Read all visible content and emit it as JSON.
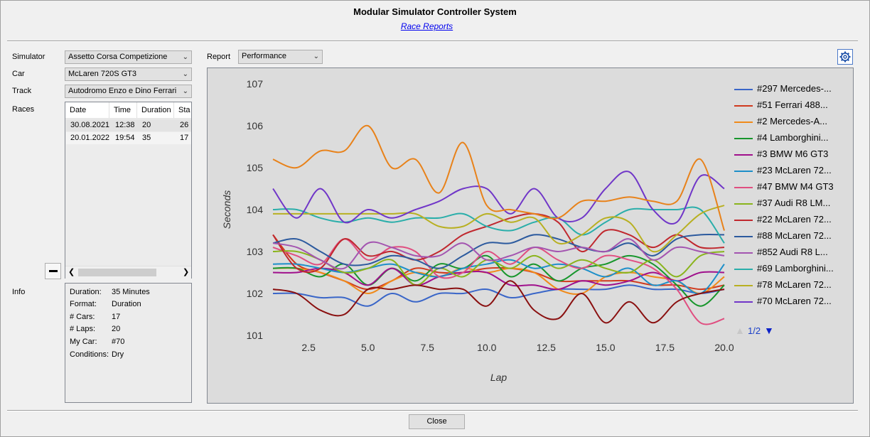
{
  "window": {
    "title": "Modular Simulator Controller System",
    "subtitle_link": "Race Reports"
  },
  "left": {
    "simulator_label": "Simulator",
    "simulator_value": "Assetto Corsa Competizione",
    "car_label": "Car",
    "car_value": "McLaren 720S GT3",
    "track_label": "Track",
    "track_value": "Autodromo Enzo e Dino Ferrari",
    "races_label": "Races",
    "races_columns": [
      "Date",
      "Time",
      "Duration",
      "Sta"
    ],
    "races_rows": [
      [
        "30.08.2021",
        "12:38",
        "20",
        "26"
      ],
      [
        "20.01.2022",
        "19:54",
        "35",
        "17"
      ]
    ],
    "info_label": "Info",
    "info": [
      {
        "key": "Duration:",
        "value": "35 Minutes"
      },
      {
        "key": "Format:",
        "value": "Duration"
      },
      {
        "key": "# Cars:",
        "value": "17"
      },
      {
        "key": "# Laps:",
        "value": "20"
      },
      {
        "key": "My Car:",
        "value": "#70"
      },
      {
        "key": "Conditions:",
        "value": "Dry"
      }
    ]
  },
  "report": {
    "label": "Report",
    "value": "Performance"
  },
  "pager": {
    "text": "1/2"
  },
  "buttons": {
    "close": "Close"
  },
  "icons": {
    "settings": "gear-icon",
    "remove": "minus-icon",
    "page_up": "triangle-up-icon",
    "page_down": "triangle-down-icon"
  },
  "chart_data": {
    "type": "line",
    "xlabel": "Lap",
    "ylabel": "Seconds",
    "xlim": [
      1,
      20
    ],
    "ylim": [
      101,
      107
    ],
    "xticks": [
      "2.5",
      "5.0",
      "7.5",
      "10.0",
      "12.5",
      "15.0",
      "17.5",
      "20.0"
    ],
    "yticks": [
      "101",
      "102",
      "103",
      "104",
      "105",
      "106",
      "107"
    ],
    "x": [
      1,
      2,
      3,
      4,
      5,
      6,
      7,
      8,
      9,
      10,
      11,
      12,
      13,
      14,
      15,
      16,
      17,
      18,
      19,
      20
    ],
    "series": [
      {
        "name": "#297 Mercedes-...",
        "color": "#3a66c8",
        "values": [
          102.0,
          102.0,
          101.9,
          101.9,
          101.7,
          102.0,
          101.8,
          102.0,
          102.0,
          102.1,
          101.9,
          102.0,
          102.1,
          102.1,
          102.1,
          102.2,
          102.1,
          102.1,
          102.0,
          102.1
        ]
      },
      {
        "name": "#51 Ferrari 488...",
        "color": "#d03a1e",
        "values": [
          103.4,
          102.7,
          102.5,
          102.3,
          102.1,
          102.3,
          102.6,
          102.5,
          102.5,
          102.6,
          102.6,
          102.5,
          102.3,
          102.3,
          102.3,
          102.3,
          102.2,
          102.2,
          102.1,
          102.2
        ]
      },
      {
        "name": "#2 Mercedes-A...",
        "color": "#f08a1a",
        "values": [
          102.6,
          102.6,
          102.5,
          102.3,
          102.0,
          102.3,
          102.5,
          102.4,
          102.6,
          102.5,
          102.6,
          102.5,
          102.1,
          102.0,
          102.4,
          102.5,
          102.4,
          102.3,
          102.0,
          102.4
        ]
      },
      {
        "name": "#4 Lamborghini...",
        "color": "#18962c",
        "values": [
          102.6,
          102.6,
          102.4,
          102.7,
          102.2,
          102.6,
          102.3,
          102.7,
          102.6,
          102.9,
          102.4,
          102.7,
          102.3,
          102.6,
          102.7,
          102.9,
          102.7,
          102.2,
          101.7,
          102.2
        ]
      },
      {
        "name": "#3 BMW M6 GT3",
        "color": "#a0108c",
        "values": [
          102.5,
          102.5,
          102.6,
          102.5,
          102.2,
          102.6,
          102.2,
          102.4,
          102.5,
          102.5,
          102.2,
          102.2,
          102.1,
          102.3,
          102.2,
          102.3,
          102.5,
          102.3,
          102.5,
          102.5
        ]
      },
      {
        "name": "#23 McLaren 72...",
        "color": "#1d8fc9",
        "values": [
          102.7,
          102.7,
          102.6,
          102.5,
          102.6,
          102.7,
          102.5,
          102.4,
          102.6,
          102.7,
          102.8,
          102.6,
          102.7,
          102.6,
          102.4,
          102.6,
          102.2,
          102.3,
          102.0,
          102.7
        ]
      },
      {
        "name": "#47 BMW M4 GT3",
        "color": "#e04e80",
        "values": [
          103.1,
          102.9,
          102.7,
          103.3,
          102.8,
          103.1,
          103.0,
          102.4,
          102.5,
          103.0,
          102.7,
          103.1,
          102.8,
          102.6,
          102.9,
          102.8,
          102.6,
          102.1,
          101.3,
          101.4
        ]
      },
      {
        "name": "#37 Audi R8 LM...",
        "color": "#8ab41c",
        "values": [
          103.0,
          103.0,
          102.8,
          102.5,
          102.6,
          102.8,
          102.2,
          102.6,
          102.4,
          102.8,
          102.6,
          102.9,
          102.6,
          102.8,
          102.6,
          102.5,
          102.8,
          102.4,
          102.9,
          103.0
        ]
      },
      {
        "name": "#22 McLaren 72...",
        "color": "#c0282e",
        "values": [
          103.4,
          102.6,
          102.6,
          103.3,
          102.9,
          103.0,
          102.8,
          103.0,
          103.4,
          103.6,
          103.8,
          103.9,
          103.7,
          103.0,
          103.5,
          103.4,
          103.1,
          103.4,
          103.1,
          103.1
        ]
      },
      {
        "name": "#88 McLaren 72...",
        "color": "#2c5a9e",
        "values": [
          103.2,
          103.3,
          103.0,
          102.7,
          102.7,
          102.9,
          102.8,
          102.6,
          102.9,
          103.2,
          103.2,
          103.4,
          103.3,
          103.1,
          103.0,
          103.2,
          102.9,
          103.3,
          103.4,
          103.4
        ]
      },
      {
        "name": "#852 Audi R8 L...",
        "color": "#a354b0",
        "values": [
          103.2,
          103.1,
          102.8,
          102.6,
          103.2,
          103.1,
          102.9,
          102.9,
          103.2,
          102.8,
          102.9,
          103.1,
          103.0,
          103.1,
          103.0,
          103.3,
          102.8,
          103.1,
          103.0,
          102.9
        ]
      },
      {
        "name": "#69 Lamborghini...",
        "color": "#2aaeaa",
        "values": [
          104.0,
          104.0,
          103.8,
          103.7,
          103.8,
          103.7,
          103.8,
          103.8,
          103.9,
          103.6,
          103.5,
          103.7,
          103.8,
          103.4,
          103.7,
          104.0,
          104.0,
          104.0,
          104.0,
          103.2
        ]
      },
      {
        "name": "#78 McLaren 72...",
        "color": "#b8b022",
        "values": [
          103.9,
          103.9,
          103.9,
          103.9,
          103.9,
          103.9,
          103.9,
          103.6,
          103.6,
          103.9,
          103.7,
          103.8,
          103.2,
          103.4,
          103.8,
          103.7,
          103.0,
          103.4,
          103.9,
          104.1
        ]
      },
      {
        "name": "#70 McLaren 72...",
        "color": "#7036c8",
        "values": [
          104.5,
          103.8,
          104.5,
          103.7,
          104.0,
          103.8,
          104.0,
          104.2,
          104.5,
          104.5,
          103.9,
          104.5,
          103.8,
          103.8,
          104.5,
          104.9,
          104.0,
          103.7,
          104.8,
          104.5
        ]
      },
      {
        "name": "#297 Mercedes-...",
        "color": "#e8821a",
        "values": [
          105.2,
          105.0,
          105.4,
          105.4,
          106.0,
          105.0,
          105.2,
          104.4,
          105.6,
          104.1,
          104.0,
          103.9,
          103.8,
          104.2,
          104.2,
          104.3,
          104.2,
          104.2,
          105.2,
          103.5
        ],
        "legend": false
      },
      {
        "name": "",
        "color": "#8a1010",
        "values": [
          102.1,
          102.0,
          101.6,
          101.5,
          102.1,
          102.1,
          102.2,
          102.1,
          102.1,
          101.7,
          102.3,
          101.6,
          101.4,
          102.0,
          101.3,
          101.8,
          101.3,
          101.8,
          102.0,
          102.1
        ],
        "legend": false
      }
    ]
  }
}
